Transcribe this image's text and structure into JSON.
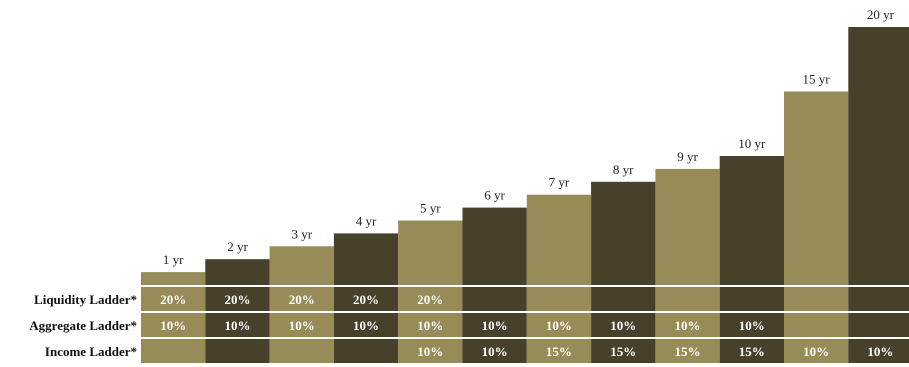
{
  "chart_data": {
    "type": "bar",
    "categories": [
      "1 yr",
      "2 yr",
      "3 yr",
      "4 yr",
      "5 yr",
      "6 yr",
      "7 yr",
      "8 yr",
      "9 yr",
      "10 yr",
      "15 yr",
      "20 yr"
    ],
    "values": [
      1,
      2,
      3,
      4,
      5,
      6,
      7,
      8,
      9,
      10,
      15,
      20
    ],
    "title": "",
    "xlabel": "",
    "ylabel": "",
    "grid": false,
    "colors": {
      "light": "#978b57",
      "dark": "#47402b"
    },
    "table": {
      "rows": [
        {
          "label": "Liquidity Ladder*",
          "cells": [
            "20%",
            "20%",
            "20%",
            "20%",
            "20%",
            "",
            "",
            "",
            "",
            "",
            "",
            ""
          ]
        },
        {
          "label": "Aggregate Ladder*",
          "cells": [
            "10%",
            "10%",
            "10%",
            "10%",
            "10%",
            "10%",
            "10%",
            "10%",
            "10%",
            "10%",
            "",
            ""
          ]
        },
        {
          "label": "Income Ladder*",
          "cells": [
            "",
            "",
            "",
            "",
            "10%",
            "10%",
            "15%",
            "15%",
            "15%",
            "15%",
            "10%",
            "10%"
          ]
        }
      ]
    }
  }
}
